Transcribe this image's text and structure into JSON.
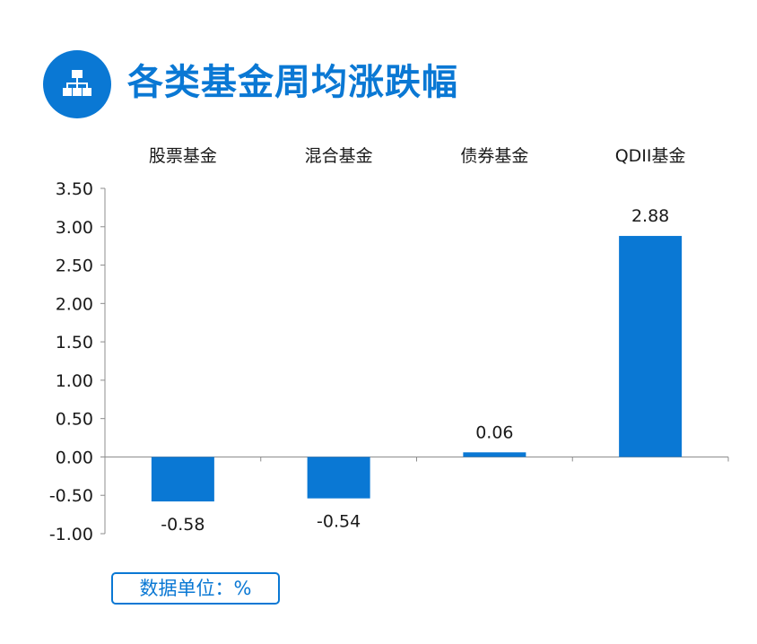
{
  "header": {
    "title": "各类基金周均涨跌幅",
    "icon": "sitemap-icon"
  },
  "colors": {
    "accent": "#0a78d4",
    "bar": "#0a78d4",
    "axis": "#8c8c8c"
  },
  "unit_note": "数据单位：%",
  "chart_data": {
    "type": "bar",
    "categories": [
      "股票基金",
      "混合基金",
      "债券基金",
      "QDII基金"
    ],
    "values": [
      -0.58,
      -0.54,
      0.06,
      2.88
    ],
    "data_labels": [
      "-0.58",
      "-0.54",
      "0.06",
      "2.88"
    ],
    "category_position": "top",
    "ylim": [
      -1.0,
      3.5
    ],
    "ytick_step": 0.5,
    "ytick_labels": [
      "3.50",
      "3.00",
      "2.50",
      "2.00",
      "1.50",
      "1.00",
      "0.50",
      "0.00",
      "-0.50",
      "-1.00"
    ],
    "grid": false,
    "legend": false,
    "title": "",
    "xlabel": "",
    "ylabel": ""
  }
}
